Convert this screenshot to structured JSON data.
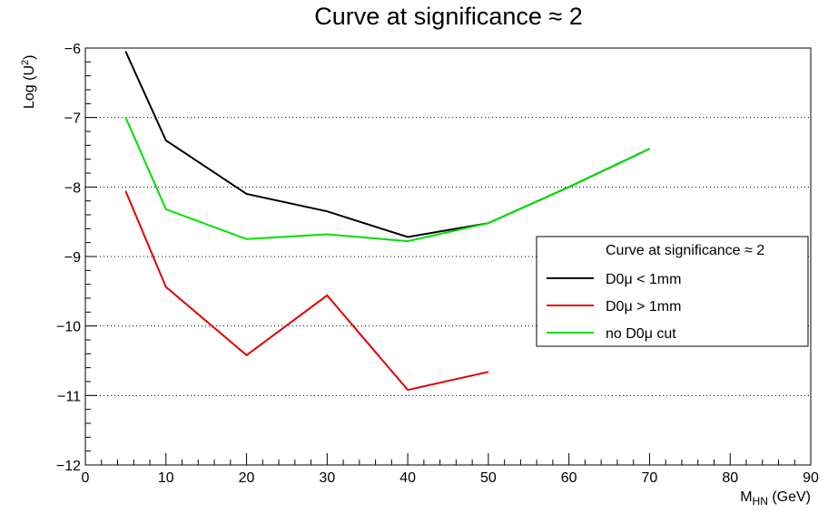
{
  "chart_data": {
    "type": "line",
    "title": "Curve at significance ≈ 2",
    "xlabel": {
      "main": "M",
      "sub": "HN",
      "unit": " (GeV)"
    },
    "ylabel": {
      "main": "Log (U",
      "sup": "2",
      "end": ")"
    },
    "xlim": [
      0,
      90
    ],
    "ylim": [
      -12,
      -6
    ],
    "x_ticks": [
      0,
      10,
      20,
      30,
      40,
      50,
      60,
      70,
      80,
      90
    ],
    "y_ticks": [
      -12,
      -11,
      -10,
      -9,
      -8,
      -7,
      -6
    ],
    "x_tick_labels": [
      "0",
      "10",
      "20",
      "30",
      "40",
      "50",
      "60",
      "70",
      "80",
      "90"
    ],
    "y_tick_labels": [
      "−12",
      "−11",
      "−10",
      "−9",
      "−8",
      "−7",
      "−6"
    ],
    "grid": "horizontal dotted",
    "legend": {
      "placement": "right",
      "header": "Curve at significance ≈ 2"
    },
    "series": [
      {
        "name": "D0μ < 1mm",
        "color": "#000000",
        "x": [
          5,
          10,
          20,
          30,
          40,
          50,
          60,
          70
        ],
        "y": [
          -6.05,
          -7.33,
          -8.1,
          -8.35,
          -8.72,
          -8.52,
          -8.0,
          -7.45
        ]
      },
      {
        "name": "D0μ > 1mm",
        "color": "#e00000",
        "x": [
          5,
          10,
          20,
          30,
          40,
          50
        ],
        "y": [
          -8.06,
          -9.44,
          -10.42,
          -9.56,
          -10.92,
          -10.66
        ]
      },
      {
        "name": "no D0μ cut",
        "color": "#00e000",
        "x": [
          5,
          10,
          20,
          30,
          40,
          50,
          60,
          70
        ],
        "y": [
          -7.0,
          -8.32,
          -8.75,
          -8.68,
          -8.78,
          -8.52,
          -8.0,
          -7.45
        ]
      }
    ]
  }
}
